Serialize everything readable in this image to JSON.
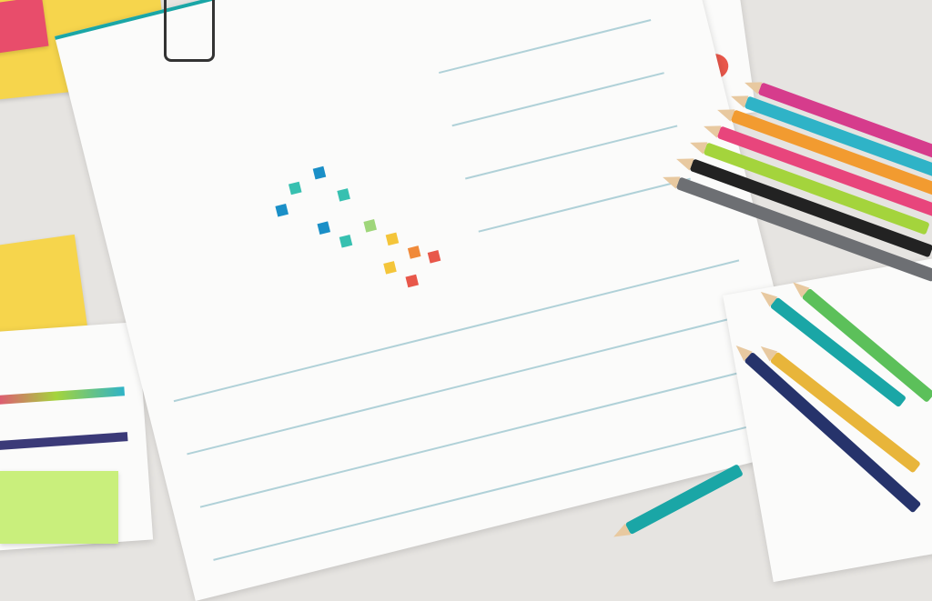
{
  "scene": {
    "background": "#e6e4e1",
    "paper": "#fbfbfa",
    "accent_teal": "#1aa6a6",
    "sticky_notes": [
      "#f6d54c",
      "#e84d6b",
      "#c9ef7c"
    ],
    "pencils": [
      "#d63c8c",
      "#2fb3c7",
      "#f29b30",
      "#e8457c",
      "#a4d43c",
      "#222222",
      "#6d6f73"
    ],
    "heatmap_colors": [
      "#1a8fc7",
      "#37c0b0",
      "#f4c53a",
      "#f08a3a",
      "#e8574a",
      "#9fd67a"
    ]
  }
}
